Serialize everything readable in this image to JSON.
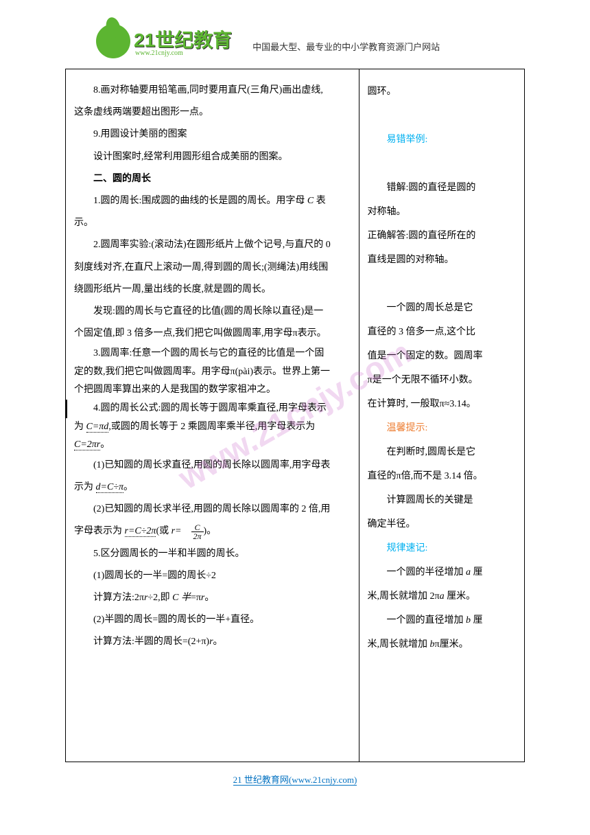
{
  "header": {
    "logo_text": "21世纪教育",
    "logo_url": "www.21cnjy.com",
    "tagline": "中国最大型、最专业的中小学教育资源门户网站"
  },
  "left": {
    "p8": "8.画对称轴要用铅笔画,同时要用直尺(三角尺)画出虚线,",
    "p8b": "这条虚线两端要超出图形一点。",
    "p9": "9.用圆设计美丽的图案",
    "p9b": "设计图案时,经常利用圆形组合成美丽的图案。",
    "section2": "二、圆的周长",
    "s2_1a": "1.圆的周长:围成圆的曲线的长是圆的周长。用字母 ",
    "s2_1b": " 表",
    "s2_1c": "示。",
    "s2_2a": "2.圆周率实验:(滚动法)在圆形纸片上做个记号,与直尺的 0",
    "s2_2b": "刻度线对齐,在直尺上滚动一周,得到圆的周长;(测绳法)用线围",
    "s2_2c": "绕圆形纸片一周,量出线的长度,就是圆的周长。",
    "s2_find_a": "发现:圆的周长与它直径的比值(圆的周长除以直径)是一",
    "s2_find_b": "个固定值,即 3 倍多一点,我们把它叫做圆周率,用字母π表示。",
    "s2_3a": "3.圆周率:任意一个圆的周长与它的直径的比值是一个固",
    "s2_3b": "定的数,我们把它叫做圆周率。用字母π(pài)表示。世界上第一",
    "s2_3c": "个把圆周率算出来的人是我国的数学家祖冲之。",
    "s2_4a": "4.圆的周长公式:圆的周长等于圆周率乘直径,用字母表示",
    "s2_4b": "为 ",
    "s2_4c": ",或圆的周长等于 2 乘圆周率乘半径,用字母表示为",
    "s2_4d": "。",
    "s2_4_1a": "(1)已知圆的周长求直径,用圆的周长除以圆周率,用字母表",
    "s2_4_1b": "示为 ",
    "s2_4_1c": "。",
    "s2_4_2a": "(2)已知圆的周长求半径,用圆的周长除以圆周率的 2 倍,用",
    "s2_4_2b": "字母表示为 ",
    "s2_4_2c": "(或 ",
    "s2_4_2d": ")。",
    "s2_5": "5.区分圆周长的一半和半圆的周长。",
    "s2_5_1": "(1)圆周长的一半=圆的周长÷2",
    "s2_5_calc1a": "计算方法:2π",
    "s2_5_calc1b": "÷2,即 ",
    "s2_5_calc1c": "=π",
    "s2_5_calc1d": "。",
    "s2_5_2": "(2)半圆的周长=圆的周长的一半+直径。",
    "s2_5_calc2a": "计算方法:半圆的周长=(2+π)",
    "s2_5_calc2b": "。",
    "formula_c": "C",
    "formula_cpd": "C=πd",
    "formula_c2pr": "C=2πr",
    "formula_dcp": "d=C÷π",
    "formula_rc2p": "r=C÷2π",
    "formula_r": "r",
    "formula_chalf": "C 半",
    "frac_num": "C",
    "frac_den": "2π"
  },
  "right": {
    "p1": "圆环。",
    "label1": "易错举例:",
    "p2a": "错解:圆的直径是圆的",
    "p2b": "对称轴。",
    "p3a": "正确解答:圆的直径所在的",
    "p3b": "直线是圆的对称轴。",
    "p4a": "一个圆的周长总是它",
    "p4b": "直径的 3 倍多一点,这个比",
    "p4c": "值是一个固定的数。圆周率",
    "p4d": "π是一个无限不循环小数。",
    "p4e": "在计算时, 一般取π≈3.14。",
    "label2": "温馨提示:",
    "p5a": "在判断时,圆周长是它",
    "p5b": "直径的π倍,而不是 3.14 倍。",
    "p6a": "计算圆周长的关键是",
    "p6b": "确定半径。",
    "label3": "规律速记:",
    "p7a": "一个圆的半径增加 ",
    "p7b": " 厘",
    "p7c": "米,周长就增加 2π",
    "p7d": " 厘米。",
    "p8a": "一个圆的直径增加 ",
    "p8b": " 厘",
    "p8c": "米,周长就增加 ",
    "p8d": "π厘米。",
    "var_a": "a",
    "var_b": "b"
  },
  "footer": {
    "text": "21 世纪教育网(www.21cnjy.com)"
  },
  "watermark": "www.21cnjy.com"
}
